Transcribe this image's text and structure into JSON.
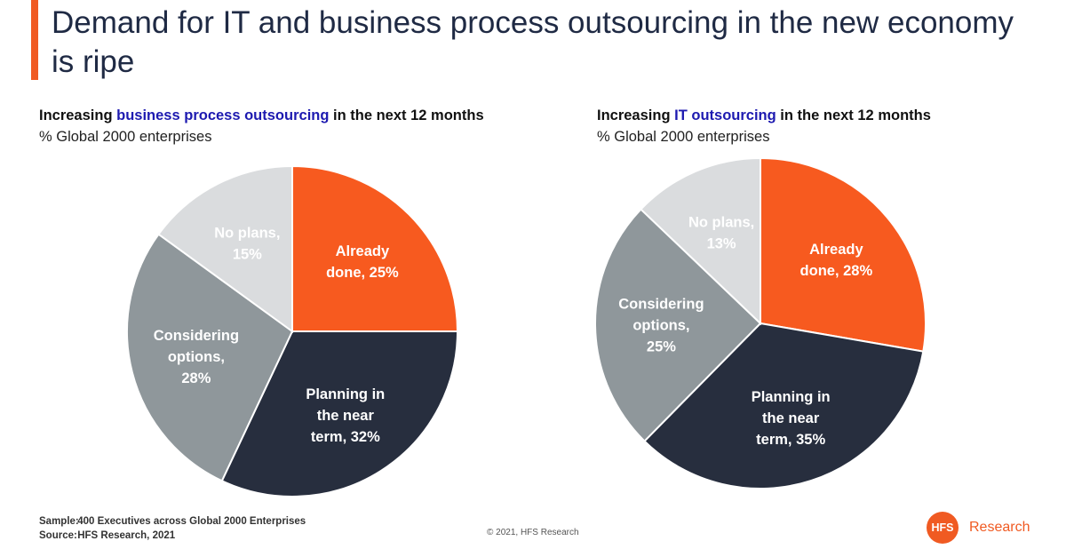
{
  "title": "Demand for IT and business process outsourcing in the new economy is ripe",
  "colors": {
    "accent": "#f05a22",
    "already_done": "#f75a1f",
    "planning": "#272e3e",
    "considering": "#8f979b",
    "no_plans": "#dadcde"
  },
  "chart_data": [
    {
      "type": "pie",
      "subtitle_pre": "Increasing ",
      "subtitle_highlight": "business process outsourcing",
      "subtitle_post": " in the next 12 months",
      "unit": "% Global 2000 enterprises",
      "slices": [
        {
          "key": "already_done",
          "lines": [
            "Already",
            "done, 25%"
          ],
          "value": 25
        },
        {
          "key": "planning",
          "lines": [
            "Planning in",
            "the near",
            "term, 32%"
          ],
          "value": 32
        },
        {
          "key": "considering",
          "lines": [
            "Considering",
            "options,",
            "28%"
          ],
          "value": 28
        },
        {
          "key": "no_plans",
          "lines": [
            "No plans,",
            "15%"
          ],
          "value": 15
        }
      ]
    },
    {
      "type": "pie",
      "subtitle_pre": "Increasing ",
      "subtitle_highlight": "IT outsourcing",
      "subtitle_post": " in the next 12 months",
      "unit": "% Global 2000 enterprises",
      "slices": [
        {
          "key": "already_done",
          "lines": [
            "Already",
            "done, 28%"
          ],
          "value": 28
        },
        {
          "key": "planning",
          "lines": [
            "Planning in",
            "the near",
            "term, 35%"
          ],
          "value": 35
        },
        {
          "key": "considering",
          "lines": [
            "Considering",
            "options,",
            "25%"
          ],
          "value": 25
        },
        {
          "key": "no_plans",
          "lines": [
            "No plans,",
            "13%"
          ],
          "value": 13
        }
      ]
    }
  ],
  "footer": {
    "sample_key": "Sample:",
    "sample_value": "400 Executives across Global 2000 Enterprises",
    "source_key": "Source:",
    "source_value": "HFS Research, 2021",
    "copyright": "© 2021, HFS Research"
  },
  "logo": {
    "mark": "HFS",
    "text": "Research"
  }
}
